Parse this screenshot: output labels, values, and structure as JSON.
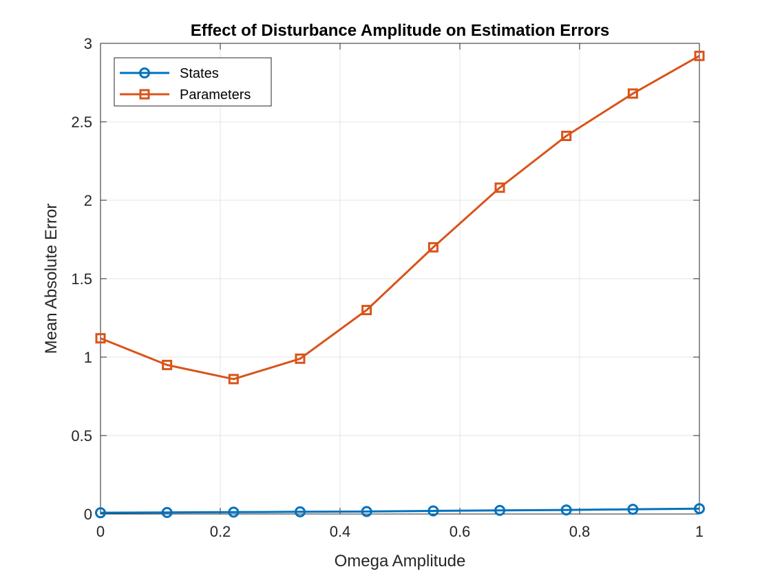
{
  "chart_data": {
    "type": "line",
    "title": "Effect of Disturbance Amplitude on Estimation Errors",
    "xlabel": "Omega Amplitude",
    "ylabel": "Mean Absolute Error",
    "xlim": [
      0,
      1
    ],
    "ylim": [
      0,
      3
    ],
    "xticks": [
      "0",
      "0.2",
      "0.4",
      "0.6",
      "0.8",
      "1"
    ],
    "yticks": [
      "0",
      "0.5",
      "1",
      "1.5",
      "2",
      "2.5",
      "3"
    ],
    "grid": true,
    "legend_position": "top-left",
    "x": [
      0,
      0.1111,
      0.2222,
      0.3333,
      0.4444,
      0.5556,
      0.6667,
      0.7778,
      0.8889,
      1.0
    ],
    "series": [
      {
        "name": "States",
        "marker": "circle",
        "color": "#0072BD",
        "values": [
          0.008,
          0.01,
          0.012,
          0.014,
          0.016,
          0.02,
          0.023,
          0.026,
          0.03,
          0.034
        ]
      },
      {
        "name": "Parameters",
        "marker": "square",
        "color": "#D95319",
        "values": [
          1.12,
          0.95,
          0.86,
          0.99,
          1.3,
          1.7,
          2.08,
          2.41,
          2.68,
          2.92
        ]
      }
    ]
  }
}
